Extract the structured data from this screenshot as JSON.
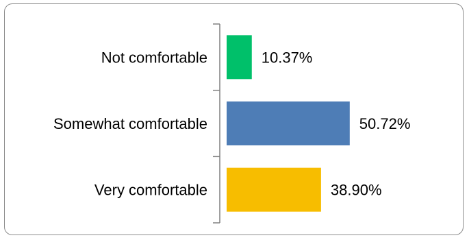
{
  "chart_data": {
    "type": "bar",
    "orientation": "horizontal",
    "categories": [
      "Not comfortable",
      "Somewhat comfortable",
      "Very comfortable"
    ],
    "values": [
      10.37,
      50.72,
      38.9
    ],
    "value_labels": [
      "10.37%",
      "50.72%",
      "38.90%"
    ],
    "colors": [
      "#00c06a",
      "#4e7db6",
      "#f7bd00"
    ],
    "axis_color": "#808080",
    "xlim": [
      0,
      100
    ],
    "grid": false,
    "legend": "none"
  }
}
